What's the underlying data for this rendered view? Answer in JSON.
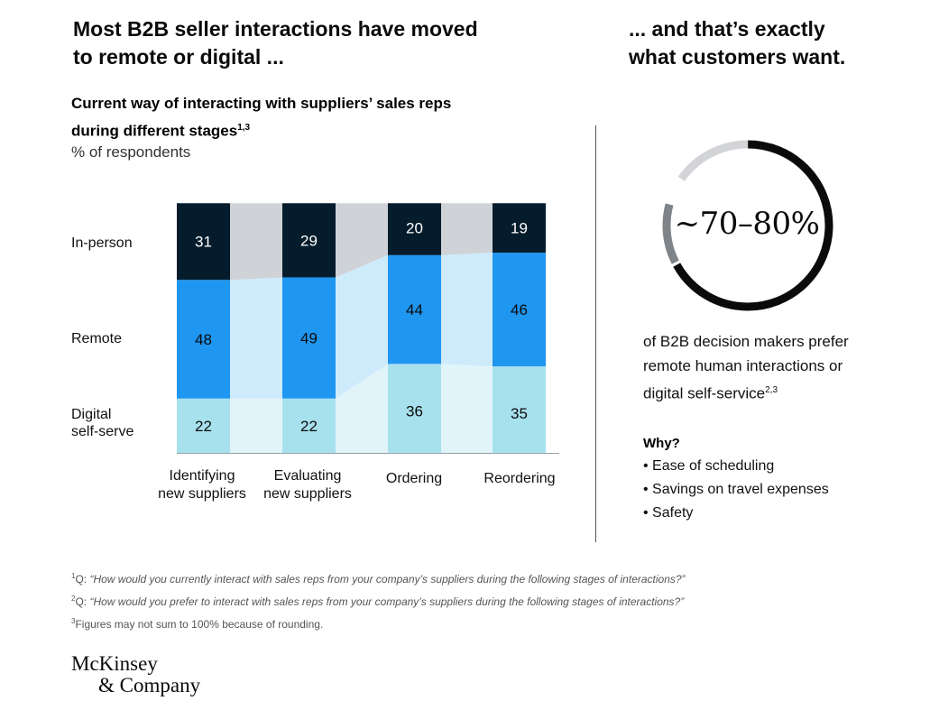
{
  "left_headline": [
    "Most B2B seller interactions have moved",
    "to remote or digital ..."
  ],
  "right_headline": [
    "... and that’s exactly",
    "what customers want."
  ],
  "chart_data": {
    "type": "bar",
    "stacked": true,
    "title_lines": [
      "Current way of interacting with suppliers’ sales reps",
      "during different stages"
    ],
    "title_sup": "1,3",
    "subtitle": "% of respondents",
    "categories": [
      [
        "Identifying",
        "new suppliers"
      ],
      [
        "Evaluating",
        "new suppliers"
      ],
      [
        "Ordering"
      ],
      [
        "Reordering"
      ]
    ],
    "row_labels": [
      {
        "key": "in_person",
        "lines": [
          "In-person"
        ]
      },
      {
        "key": "remote",
        "lines": [
          "Remote"
        ]
      },
      {
        "key": "digital",
        "lines": [
          "Digital",
          "self-serve"
        ]
      }
    ],
    "series": [
      {
        "key": "digital",
        "values": [
          22,
          22,
          36,
          35
        ]
      },
      {
        "key": "remote",
        "values": [
          48,
          49,
          44,
          46
        ]
      },
      {
        "key": "in_person",
        "values": [
          31,
          29,
          20,
          19
        ]
      }
    ],
    "colors": {
      "in_person": "#051c2c",
      "remote": "#1f96f0",
      "digital": "#a8e1ee",
      "in_person_flow": "#cfd3d7",
      "remote_flow": "#cdebfb",
      "digital_flow": "#e1f4f9",
      "axis": "#9aa0a6"
    }
  },
  "ring": {
    "value_text": "~70–80%",
    "colors": {
      "main": "#0b0b0b",
      "light": "#d2d4d7",
      "mid": "#7f8489"
    }
  },
  "preference_lines": [
    "of B2B decision makers prefer",
    "remote human interactions or",
    "digital self-service"
  ],
  "preference_sup": "2,3",
  "why": {
    "title": "Why?",
    "items": [
      "• Ease of scheduling",
      "• Savings on travel expenses",
      "• Safety"
    ]
  },
  "footnotes": [
    {
      "num": "1",
      "prefix": "Q: ",
      "text": "“How would you currently interact with sales reps from your company’s suppliers during the following stages of interactions?”"
    },
    {
      "num": "2",
      "prefix": "Q: ",
      "text": "“How would you prefer to interact with sales reps from your company’s suppliers during the following stages of interactions?”"
    },
    {
      "num": "3",
      "prefix": "",
      "text": "Figures may not sum to 100% because of rounding."
    }
  ],
  "logo": [
    "McKinsey",
    "& Company"
  ]
}
